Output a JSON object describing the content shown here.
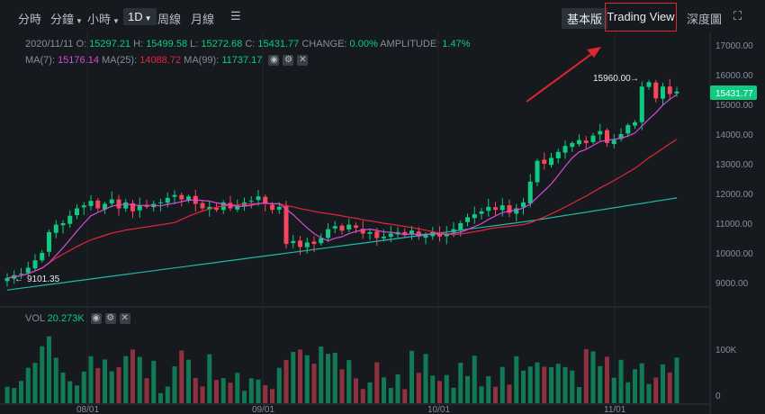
{
  "toolbar": {
    "intervals": [
      "分時",
      "分鐘",
      "小時",
      "1D",
      "周線",
      "月線"
    ],
    "basic_label": "基本版",
    "tradingview_label": "Trading View",
    "depth_label": "深度圖"
  },
  "ohlc": {
    "date": "2020/11/11",
    "o_label": "O:",
    "o": "15297.21",
    "h_label": "H:",
    "h": "15499.58",
    "l_label": "L:",
    "l": "15272.68",
    "c_label": "C:",
    "c": "15431.77",
    "change_label": "CHANGE:",
    "change": "0.00%",
    "amp_label": "AMPLITUDE:",
    "amp": "1.47%"
  },
  "ma": {
    "ma7_label": "MA(7):",
    "ma7": "15176.14",
    "ma25_label": "MA(25):",
    "ma25": "14088.72",
    "ma99_label": "MA(99):",
    "ma99": "11737.17"
  },
  "vol": {
    "label": "VOL",
    "value": "20.273K"
  },
  "price_axis": [
    "17000.00",
    "16000.00",
    "15000.00",
    "14000.00",
    "13000.00",
    "12000.00",
    "11000.00",
    "10000.00",
    "9000.00"
  ],
  "vol_axis": [
    "100K",
    "0"
  ],
  "date_axis": [
    "08/01",
    "09/01",
    "10/01",
    "11/01"
  ],
  "markers": {
    "high": "15960.00",
    "low": "9101.35",
    "last": "15431.77"
  },
  "colors": {
    "up": "#0ecb81",
    "down": "#f6465d",
    "ma7": "#d84ad8",
    "ma25": "#e0263c",
    "ma99": "#21b8a6",
    "annotation": "#e0262e"
  },
  "chart_data": {
    "type": "candlestick",
    "price_range": [
      8500,
      17300
    ],
    "x_labels": [
      "08/01",
      "09/01",
      "10/01",
      "11/01"
    ],
    "series_close": [
      9150,
      9250,
      9300,
      9500,
      9750,
      10000,
      10700,
      10950,
      11000,
      11250,
      11500,
      11600,
      11750,
      11500,
      11650,
      11800,
      11500,
      11700,
      11400,
      11600,
      11550,
      11650,
      11700,
      11850,
      11950,
      11800,
      11900,
      11650,
      11500,
      11550,
      11450,
      11700,
      11500,
      11600,
      11700,
      11750,
      11900,
      11650,
      11450,
      11550,
      10300,
      10400,
      10200,
      10350,
      10300,
      10500,
      10800,
      10900,
      10750,
      10950,
      10850,
      10650,
      10700,
      10500,
      10550,
      10650,
      10700,
      10600,
      10750,
      10550,
      10600,
      10700,
      10550,
      10650,
      10800,
      11000,
      11200,
      11300,
      11400,
      11550,
      11450,
      11600,
      11350,
      11500,
      11700,
      12400,
      13100,
      13000,
      13200,
      13400,
      13600,
      13700,
      13800,
      13700,
      13950,
      14100,
      13700,
      13800,
      14000,
      14300,
      14400,
      15600,
      15750,
      15200,
      15600,
      15350,
      15432
    ]
  }
}
